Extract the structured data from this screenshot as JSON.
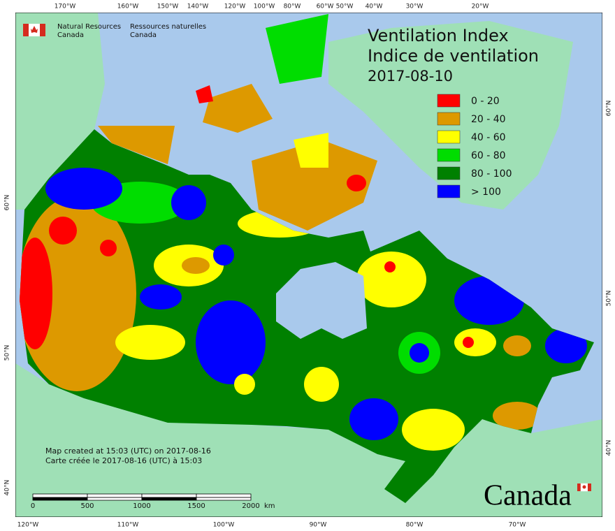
{
  "agency": {
    "en": [
      "Natural Resources",
      "Canada"
    ],
    "fr": [
      "Ressources naturelles",
      "Canada"
    ]
  },
  "title": [
    "Ventilation Index",
    "Indice de ventilation"
  ],
  "date": "2017-08-10",
  "legend": [
    {
      "label": "0 - 20",
      "color": "#ff0000"
    },
    {
      "label": "20 - 40",
      "color": "#dd9900"
    },
    {
      "label": "40 - 60",
      "color": "#ffff00"
    },
    {
      "label": "60 - 80",
      "color": "#00dd00"
    },
    {
      "label": "80 - 100",
      "color": "#008000"
    },
    {
      "label": "> 100",
      "color": "#0000ff"
    }
  ],
  "graticule": {
    "top": [
      "170°W",
      "160°W",
      "150°W",
      "140°W",
      "120°W",
      "100°W",
      "80°W",
      "60°W",
      "50°W",
      "40°W",
      "30°W",
      "20°W"
    ],
    "bottom": [
      "120°W",
      "110°W",
      "100°W",
      "90°W",
      "80°W",
      "70°W"
    ],
    "left": [
      "60°N",
      "50°N",
      "40°N"
    ],
    "right": [
      "60°N",
      "50°N",
      "40°N"
    ]
  },
  "credits": [
    "Map created at 15:03 (UTC) on 2017-08-16",
    "Carte créée le 2017-08-16 (UTC) à 15:03"
  ],
  "scale": {
    "labels": [
      "0",
      "500",
      "1000",
      "1500",
      "2000"
    ],
    "unit": "km"
  },
  "wordmark": "Canada"
}
